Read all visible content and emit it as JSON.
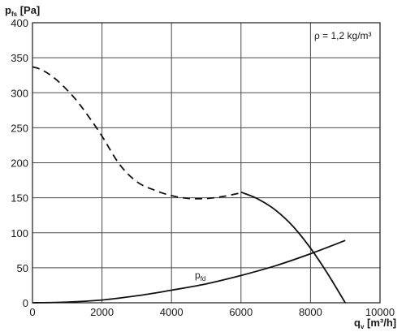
{
  "chart_data": {
    "type": "line",
    "ylabel_main": "p",
    "ylabel_sub": "fs",
    "ylabel_unit": " [Pa]",
    "xlabel_main": "q",
    "xlabel_sub": "v",
    "xlabel_unit": " [m³/h]",
    "annotation": "ρ = 1,2 kg/m³",
    "xlim": [
      0,
      10000
    ],
    "ylim": [
      0,
      400
    ],
    "x_ticks": [
      0,
      2000,
      4000,
      6000,
      8000,
      10000
    ],
    "y_ticks": [
      0,
      50,
      100,
      150,
      200,
      250,
      300,
      350,
      400
    ],
    "grid": true,
    "series": [
      {
        "style": "dashed",
        "x": [
          0,
          300,
          700,
          1200,
          1600,
          2000,
          2500,
          3000,
          3500,
          4000,
          4500,
          5000,
          5500,
          6000
        ],
        "y": [
          337,
          332,
          318,
          293,
          267,
          238,
          198,
          173,
          161,
          153,
          149,
          149,
          152,
          157
        ]
      },
      {
        "style": "solid",
        "x": [
          6000,
          6500,
          7000,
          7500,
          8000,
          8500,
          9000
        ],
        "y": [
          158,
          148,
          132,
          109,
          78,
          41,
          0
        ]
      },
      {
        "name_main": "p",
        "name_sub": "fd",
        "style": "solid",
        "x": [
          0,
          1000,
          2000,
          3000,
          4000,
          5000,
          6000,
          7000,
          8000,
          9000
        ],
        "y": [
          0,
          1,
          4,
          10,
          18,
          27,
          39,
          53,
          70,
          89
        ]
      }
    ]
  }
}
